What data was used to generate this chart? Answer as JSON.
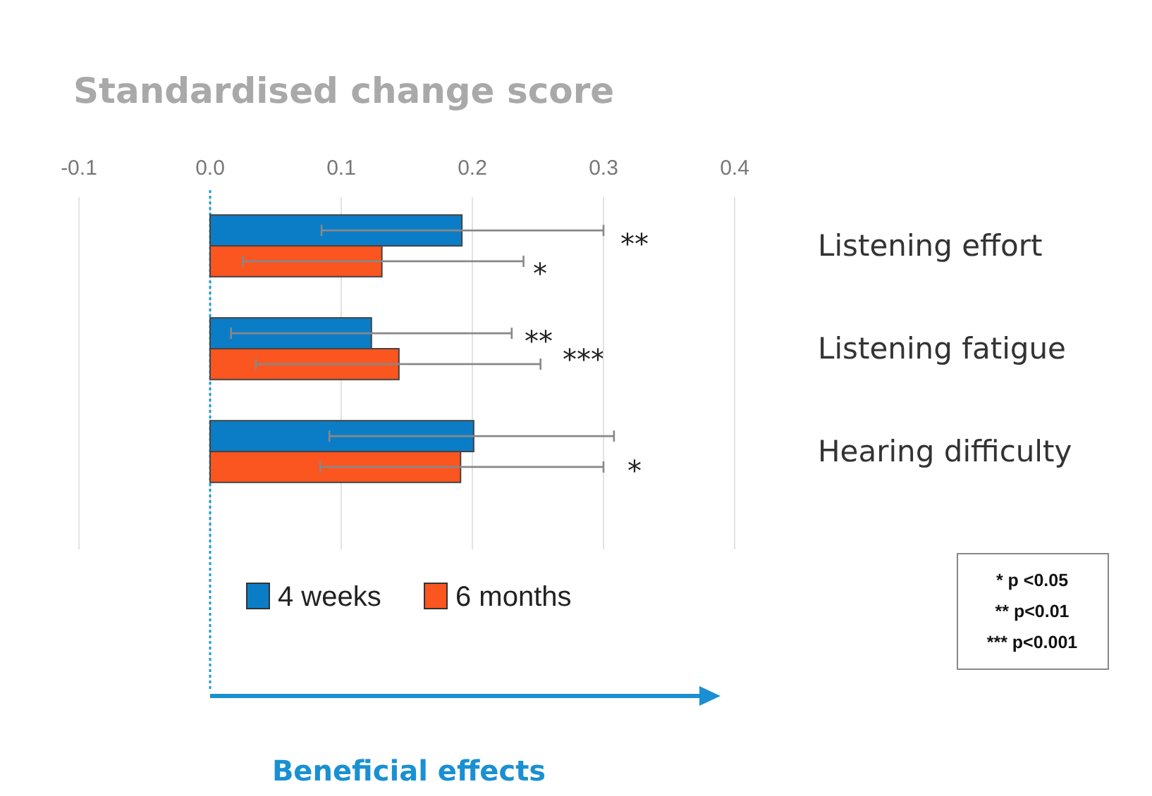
{
  "chart_data": {
    "type": "bar",
    "orientation": "horizontal",
    "title": "Standardised change score",
    "categories": [
      "Listening effort",
      "Listening fatigue",
      "Hearing difficulty"
    ],
    "series": [
      {
        "name": "4 weeks",
        "color": "#0b7dc6",
        "values": [
          0.192,
          0.123,
          0.201
        ],
        "errors": [
          [
            0.085,
            0.3
          ],
          [
            0.016,
            0.23
          ],
          [
            0.091,
            0.308
          ]
        ]
      },
      {
        "name": "6 months",
        "color": "#fb5520",
        "values": [
          0.131,
          0.144,
          0.191
        ],
        "errors": [
          [
            0.025,
            0.239
          ],
          [
            0.035,
            0.252
          ],
          [
            0.084,
            0.3
          ]
        ]
      }
    ],
    "xlim": [
      -0.1,
      0.4
    ],
    "xticks": [
      -0.1,
      {
        "value": 0,
        "label": "0.0"
      },
      0.1,
      0.2,
      0.3,
      0.4
    ],
    "grid": "x",
    "legend": "bottom left",
    "ref_lines": [
      {
        "axis": "x",
        "value": 0,
        "color": "#1a9ad6",
        "line_style": "dotted"
      }
    ],
    "annotations": [
      "**",
      "*",
      "**",
      "***",
      "*",
      "* p <0.05",
      "** p<0.01",
      "*** p<0.001",
      "Beneficial effects"
    ]
  }
}
